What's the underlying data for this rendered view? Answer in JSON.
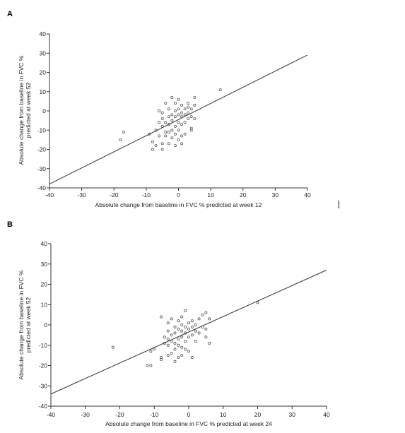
{
  "panels": [
    {
      "letter": "A"
    },
    {
      "letter": "B"
    }
  ],
  "chart_data": [
    {
      "type": "scatter",
      "panel": "A",
      "xlabel": "Absolute change from baseline in FVC % predicted at week 12",
      "ylabel": [
        "Absolute change from baseline in FVC %",
        "predicted at week 52"
      ],
      "xlim": [
        -40,
        40
      ],
      "ylim": [
        -40,
        40
      ],
      "xticks": [
        -40,
        -30,
        -20,
        -10,
        0,
        10,
        20,
        30,
        40
      ],
      "yticks": [
        -40,
        -30,
        -20,
        -10,
        0,
        10,
        20,
        30,
        40
      ],
      "trendline": {
        "x": [
          -40,
          40
        ],
        "y": [
          -38,
          29
        ]
      },
      "points": [
        [
          -18,
          -15
        ],
        [
          -17,
          -11
        ],
        [
          -9,
          -12
        ],
        [
          -8,
          -16
        ],
        [
          -8,
          -20
        ],
        [
          -7,
          -18
        ],
        [
          -7,
          -10
        ],
        [
          -6,
          -6
        ],
        [
          -6,
          0
        ],
        [
          -6,
          -13
        ],
        [
          -5,
          -20
        ],
        [
          -5,
          -17
        ],
        [
          -5,
          -8
        ],
        [
          -5,
          -4
        ],
        [
          -5,
          -1
        ],
        [
          -4,
          -13
        ],
        [
          -4,
          -11
        ],
        [
          -4,
          -6
        ],
        [
          -4,
          4
        ],
        [
          -3,
          -17
        ],
        [
          -3,
          -11
        ],
        [
          -3,
          -7
        ],
        [
          -3,
          -3
        ],
        [
          -3,
          1
        ],
        [
          -2,
          -14
        ],
        [
          -2,
          -10
        ],
        [
          -2,
          -5
        ],
        [
          -2,
          -2
        ],
        [
          -2,
          7
        ],
        [
          -1,
          -18
        ],
        [
          -1,
          -12
        ],
        [
          -1,
          -8
        ],
        [
          -1,
          -3
        ],
        [
          -1,
          0
        ],
        [
          -1,
          4
        ],
        [
          0,
          -15
        ],
        [
          0,
          -10
        ],
        [
          0,
          -6
        ],
        [
          0,
          -2
        ],
        [
          0,
          1
        ],
        [
          0,
          6
        ],
        [
          1,
          -17
        ],
        [
          1,
          -13
        ],
        [
          1,
          -7
        ],
        [
          1,
          -3
        ],
        [
          1,
          -1
        ],
        [
          1,
          3
        ],
        [
          2,
          -12
        ],
        [
          2,
          -6
        ],
        [
          2,
          -2
        ],
        [
          2,
          1
        ],
        [
          3,
          -4
        ],
        [
          3,
          -1
        ],
        [
          3,
          2
        ],
        [
          3,
          4
        ],
        [
          4,
          -10
        ],
        [
          4,
          -9
        ],
        [
          4,
          -3
        ],
        [
          4,
          1
        ],
        [
          5,
          -4
        ],
        [
          5,
          3
        ],
        [
          5,
          7
        ],
        [
          13,
          11
        ]
      ]
    },
    {
      "type": "scatter",
      "panel": "B",
      "xlabel": "Absolute change from baseline in FVC % predicted at week 24",
      "ylabel": [
        "Absolute change from baseline in FVC %",
        "predicted at week 52"
      ],
      "xlim": [
        -40,
        40
      ],
      "ylim": [
        -40,
        40
      ],
      "xticks": [
        -40,
        -30,
        -20,
        -10,
        0,
        10,
        20,
        30,
        40
      ],
      "yticks": [
        -40,
        -30,
        -20,
        -10,
        0,
        10,
        20,
        30,
        40
      ],
      "trendline": {
        "x": [
          -40,
          40
        ],
        "y": [
          -34,
          27
        ]
      },
      "points": [
        [
          -22,
          -11
        ],
        [
          -12,
          -20
        ],
        [
          -11,
          -20
        ],
        [
          -11,
          -13
        ],
        [
          -10,
          -12
        ],
        [
          -8,
          -17
        ],
        [
          -8,
          -16
        ],
        [
          -8,
          4
        ],
        [
          -7,
          -9
        ],
        [
          -7,
          -6
        ],
        [
          -6,
          -15
        ],
        [
          -6,
          -10
        ],
        [
          -6,
          -7
        ],
        [
          -6,
          -3
        ],
        [
          -6,
          1
        ],
        [
          -5,
          -14
        ],
        [
          -5,
          -8
        ],
        [
          -5,
          -5
        ],
        [
          -5,
          3
        ],
        [
          -4,
          -18
        ],
        [
          -4,
          -12
        ],
        [
          -4,
          -9
        ],
        [
          -4,
          -4
        ],
        [
          -4,
          -1
        ],
        [
          -3,
          -16
        ],
        [
          -3,
          -10
        ],
        [
          -3,
          -7
        ],
        [
          -3,
          -2
        ],
        [
          -3,
          2
        ],
        [
          -2,
          -15
        ],
        [
          -2,
          -11
        ],
        [
          -2,
          -6
        ],
        [
          -2,
          -3
        ],
        [
          -2,
          0
        ],
        [
          -2,
          4
        ],
        [
          -1,
          -12
        ],
        [
          -1,
          -8
        ],
        [
          -1,
          -4
        ],
        [
          -1,
          -1
        ],
        [
          -1,
          7
        ],
        [
          0,
          -13
        ],
        [
          0,
          -6
        ],
        [
          0,
          -2
        ],
        [
          0,
          1
        ],
        [
          1,
          -16
        ],
        [
          1,
          -5
        ],
        [
          1,
          -1
        ],
        [
          1,
          2
        ],
        [
          2,
          -8
        ],
        [
          2,
          -3
        ],
        [
          2,
          0
        ],
        [
          3,
          -4
        ],
        [
          3,
          3
        ],
        [
          4,
          -1
        ],
        [
          4,
          5
        ],
        [
          5,
          -6
        ],
        [
          5,
          -2
        ],
        [
          5,
          6
        ],
        [
          6,
          -9
        ],
        [
          6,
          3
        ],
        [
          20,
          11
        ]
      ]
    }
  ]
}
